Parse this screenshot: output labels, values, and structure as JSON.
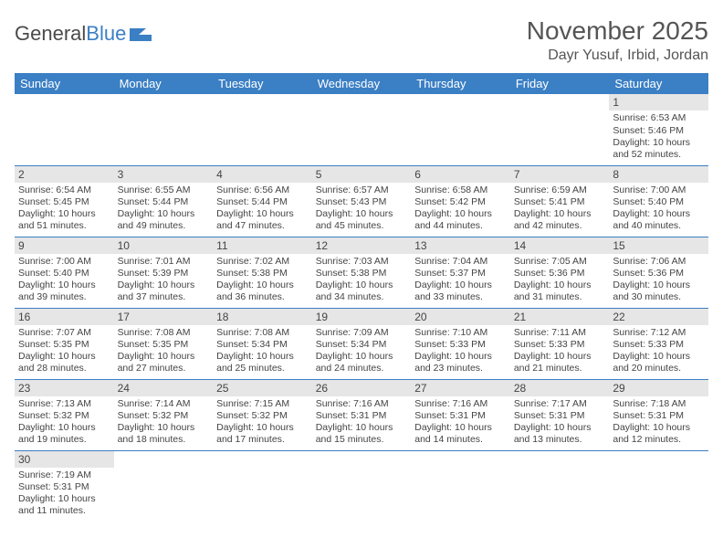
{
  "logo": {
    "word1": "General",
    "word2": "Blue",
    "icon_color": "#3b7fc4"
  },
  "header": {
    "title": "November 2025",
    "location": "Dayr Yusuf, Irbid, Jordan"
  },
  "colors": {
    "header_bg": "#3b7fc4",
    "header_text": "#ffffff",
    "daynum_bg": "#e6e6e6",
    "border": "#3b7fc4",
    "text": "#444444"
  },
  "days_of_week": [
    "Sunday",
    "Monday",
    "Tuesday",
    "Wednesday",
    "Thursday",
    "Friday",
    "Saturday"
  ],
  "labels": {
    "sunrise": "Sunrise:",
    "sunset": "Sunset:",
    "daylight": "Daylight:"
  },
  "weeks": [
    [
      null,
      null,
      null,
      null,
      null,
      null,
      {
        "n": "1",
        "sr": "6:53 AM",
        "ss": "5:46 PM",
        "dl": "10 hours and 52 minutes."
      }
    ],
    [
      {
        "n": "2",
        "sr": "6:54 AM",
        "ss": "5:45 PM",
        "dl": "10 hours and 51 minutes."
      },
      {
        "n": "3",
        "sr": "6:55 AM",
        "ss": "5:44 PM",
        "dl": "10 hours and 49 minutes."
      },
      {
        "n": "4",
        "sr": "6:56 AM",
        "ss": "5:44 PM",
        "dl": "10 hours and 47 minutes."
      },
      {
        "n": "5",
        "sr": "6:57 AM",
        "ss": "5:43 PM",
        "dl": "10 hours and 45 minutes."
      },
      {
        "n": "6",
        "sr": "6:58 AM",
        "ss": "5:42 PM",
        "dl": "10 hours and 44 minutes."
      },
      {
        "n": "7",
        "sr": "6:59 AM",
        "ss": "5:41 PM",
        "dl": "10 hours and 42 minutes."
      },
      {
        "n": "8",
        "sr": "7:00 AM",
        "ss": "5:40 PM",
        "dl": "10 hours and 40 minutes."
      }
    ],
    [
      {
        "n": "9",
        "sr": "7:00 AM",
        "ss": "5:40 PM",
        "dl": "10 hours and 39 minutes."
      },
      {
        "n": "10",
        "sr": "7:01 AM",
        "ss": "5:39 PM",
        "dl": "10 hours and 37 minutes."
      },
      {
        "n": "11",
        "sr": "7:02 AM",
        "ss": "5:38 PM",
        "dl": "10 hours and 36 minutes."
      },
      {
        "n": "12",
        "sr": "7:03 AM",
        "ss": "5:38 PM",
        "dl": "10 hours and 34 minutes."
      },
      {
        "n": "13",
        "sr": "7:04 AM",
        "ss": "5:37 PM",
        "dl": "10 hours and 33 minutes."
      },
      {
        "n": "14",
        "sr": "7:05 AM",
        "ss": "5:36 PM",
        "dl": "10 hours and 31 minutes."
      },
      {
        "n": "15",
        "sr": "7:06 AM",
        "ss": "5:36 PM",
        "dl": "10 hours and 30 minutes."
      }
    ],
    [
      {
        "n": "16",
        "sr": "7:07 AM",
        "ss": "5:35 PM",
        "dl": "10 hours and 28 minutes."
      },
      {
        "n": "17",
        "sr": "7:08 AM",
        "ss": "5:35 PM",
        "dl": "10 hours and 27 minutes."
      },
      {
        "n": "18",
        "sr": "7:08 AM",
        "ss": "5:34 PM",
        "dl": "10 hours and 25 minutes."
      },
      {
        "n": "19",
        "sr": "7:09 AM",
        "ss": "5:34 PM",
        "dl": "10 hours and 24 minutes."
      },
      {
        "n": "20",
        "sr": "7:10 AM",
        "ss": "5:33 PM",
        "dl": "10 hours and 23 minutes."
      },
      {
        "n": "21",
        "sr": "7:11 AM",
        "ss": "5:33 PM",
        "dl": "10 hours and 21 minutes."
      },
      {
        "n": "22",
        "sr": "7:12 AM",
        "ss": "5:33 PM",
        "dl": "10 hours and 20 minutes."
      }
    ],
    [
      {
        "n": "23",
        "sr": "7:13 AM",
        "ss": "5:32 PM",
        "dl": "10 hours and 19 minutes."
      },
      {
        "n": "24",
        "sr": "7:14 AM",
        "ss": "5:32 PM",
        "dl": "10 hours and 18 minutes."
      },
      {
        "n": "25",
        "sr": "7:15 AM",
        "ss": "5:32 PM",
        "dl": "10 hours and 17 minutes."
      },
      {
        "n": "26",
        "sr": "7:16 AM",
        "ss": "5:31 PM",
        "dl": "10 hours and 15 minutes."
      },
      {
        "n": "27",
        "sr": "7:16 AM",
        "ss": "5:31 PM",
        "dl": "10 hours and 14 minutes."
      },
      {
        "n": "28",
        "sr": "7:17 AM",
        "ss": "5:31 PM",
        "dl": "10 hours and 13 minutes."
      },
      {
        "n": "29",
        "sr": "7:18 AM",
        "ss": "5:31 PM",
        "dl": "10 hours and 12 minutes."
      }
    ],
    [
      {
        "n": "30",
        "sr": "7:19 AM",
        "ss": "5:31 PM",
        "dl": "10 hours and 11 minutes."
      },
      null,
      null,
      null,
      null,
      null,
      null
    ]
  ]
}
